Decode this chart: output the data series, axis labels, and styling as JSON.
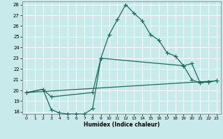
{
  "xlabel": "Humidex (Indice chaleur)",
  "bg_color": "#c8eaea",
  "grid_color": "#aed4d2",
  "line_color": "#1a6b5a",
  "xlim": [
    -0.5,
    23.5
  ],
  "ylim": [
    17.8,
    28.3
  ],
  "xticks": [
    0,
    1,
    2,
    3,
    4,
    5,
    6,
    7,
    8,
    9,
    10,
    11,
    12,
    13,
    14,
    15,
    16,
    17,
    18,
    19,
    20,
    21,
    22,
    23
  ],
  "yticks": [
    18,
    19,
    20,
    21,
    22,
    23,
    24,
    25,
    26,
    27,
    28
  ],
  "line1_x": [
    0,
    2,
    3,
    4,
    5,
    6,
    7,
    8,
    9,
    10,
    11,
    12,
    13,
    14,
    15,
    16,
    17,
    18,
    19,
    20,
    21,
    22,
    23
  ],
  "line1_y": [
    19.8,
    20.1,
    18.2,
    17.9,
    17.8,
    17.8,
    17.8,
    18.3,
    23.0,
    25.2,
    26.6,
    28.0,
    27.2,
    26.5,
    25.2,
    24.7,
    23.5,
    23.2,
    22.3,
    21.0,
    20.7,
    20.8,
    20.9
  ],
  "line2_x": [
    0,
    2,
    3,
    8,
    9,
    19,
    20,
    21,
    22,
    23
  ],
  "line2_y": [
    19.8,
    20.1,
    19.4,
    19.8,
    23.0,
    22.3,
    22.5,
    20.7,
    20.8,
    20.9
  ],
  "line3_x": [
    0,
    23
  ],
  "line3_y": [
    19.8,
    20.9
  ]
}
